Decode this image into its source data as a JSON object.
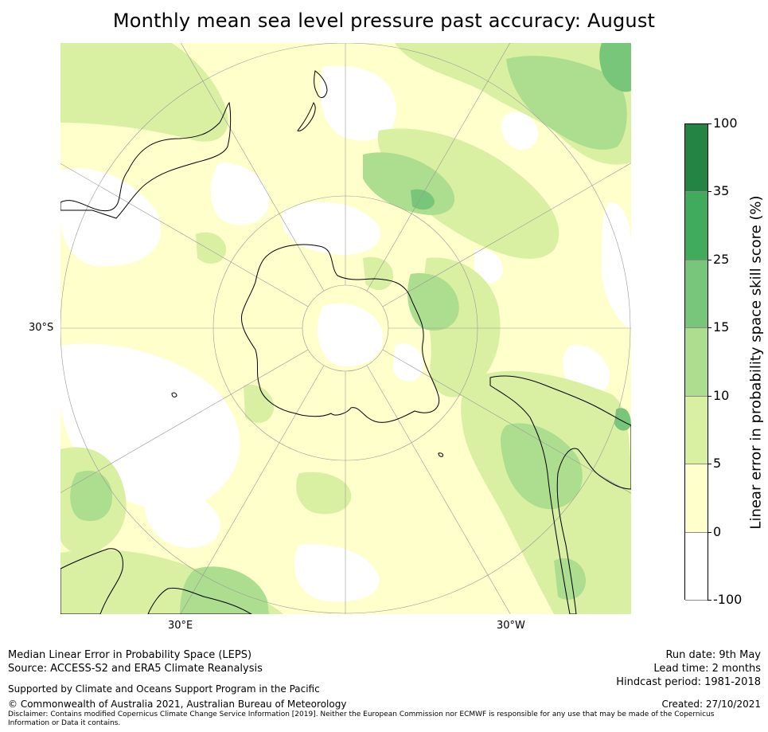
{
  "title": "Monthly mean sea level pressure past accuracy: August",
  "map": {
    "projection": "south-polar stereographic",
    "lat_labels": [
      "30°S"
    ],
    "lon_labels": [
      "30°E",
      "30°W"
    ],
    "palette": {
      "neg": "#ffffff",
      "c0_5": "#ffffcc",
      "c5_10": "#d9f0a3",
      "c10_15": "#addd8e",
      "c15_25": "#78c679",
      "c25_35": "#41ab5d",
      "c35_100": "#238443",
      "coast": "#000000",
      "grid": "#999999"
    }
  },
  "colorbar": {
    "label": "Linear error in probability space skill score (%)",
    "ticks": [
      "100",
      "35",
      "25",
      "15",
      "10",
      "5",
      "0",
      "-100"
    ],
    "colors": [
      "#238443",
      "#41ab5d",
      "#78c679",
      "#addd8e",
      "#d9f0a3",
      "#ffffcc",
      "#ffffff"
    ]
  },
  "footer": {
    "line1": "Median Linear Error in Probability Space (LEPS)",
    "line2": "Source: ACCESS-S2 and ERA5 Climate Reanalysis",
    "support": "Supported by Climate and Oceans Support Program in the Pacific",
    "copyright": "© Commonwealth of Australia 2021, Australian Bureau of Meteorology",
    "disclaimer": "Disclaimer: Contains modified Copernicus Climate Change Service Information [2019]. Neither the European Commission nor ECMWF is responsible for any use that may be made of the Copernicus Information or Data it contains.",
    "run_date": "Run date: 9th May",
    "lead_time": "Lead time: 2 months",
    "hindcast": "Hindcast period: 1981-2018",
    "created": "Created: 27/10/2021"
  }
}
